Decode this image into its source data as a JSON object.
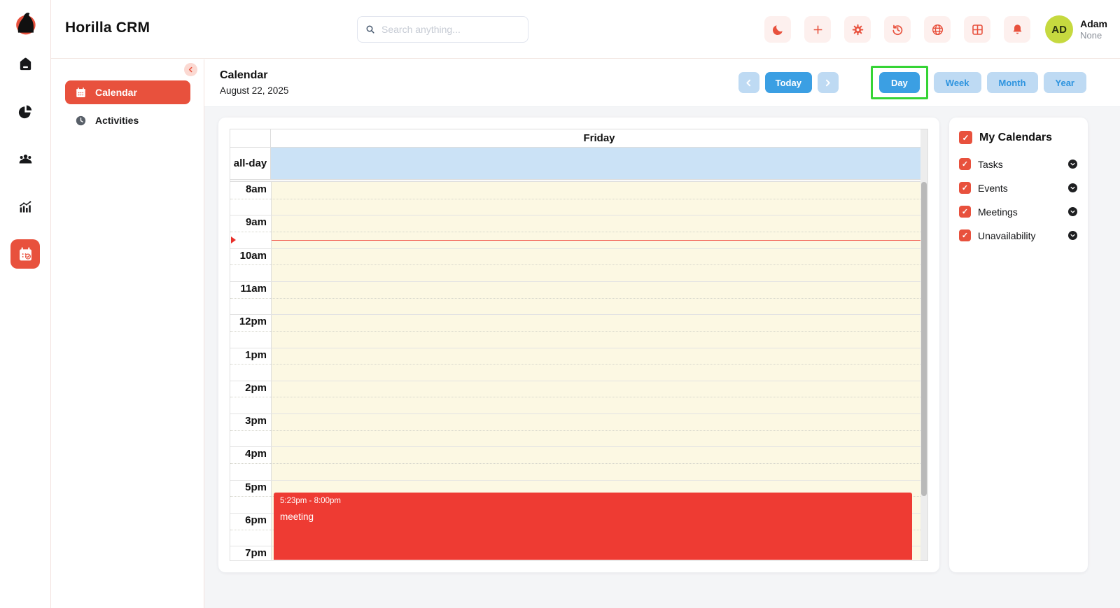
{
  "app": {
    "title": "Horilla CRM"
  },
  "header": {
    "search_placeholder": "Search anything...",
    "actions": [
      {
        "name": "dark-mode",
        "icon": "moon-icon"
      },
      {
        "name": "quick-add",
        "icon": "plus-icon"
      },
      {
        "name": "settings",
        "icon": "gear-icon"
      },
      {
        "name": "history",
        "icon": "history-icon"
      },
      {
        "name": "language",
        "icon": "globe-icon"
      },
      {
        "name": "apps",
        "icon": "grid-icon"
      },
      {
        "name": "notifications",
        "icon": "bell-icon"
      }
    ],
    "user": {
      "initials": "AD",
      "name": "Adam",
      "role": "None"
    }
  },
  "sidebar": {
    "items": [
      {
        "name": "home",
        "icon": "home-icon",
        "active": false
      },
      {
        "name": "reports",
        "icon": "pie-icon",
        "active": false
      },
      {
        "name": "contacts",
        "icon": "people-icon",
        "active": false
      },
      {
        "name": "analytics",
        "icon": "chart-icon",
        "active": false
      },
      {
        "name": "calendar",
        "icon": "calendar-check-icon",
        "active": true
      }
    ]
  },
  "nav_sidebar": {
    "items": [
      {
        "label": "Calendar",
        "active": true
      },
      {
        "label": "Activities",
        "active": false
      }
    ]
  },
  "page": {
    "title": "Calendar",
    "date": "August 22, 2025",
    "nav": {
      "today_label": "Today"
    },
    "views": [
      {
        "label": "Day",
        "active": true,
        "highlighted": true
      },
      {
        "label": "Week",
        "active": false,
        "highlighted": false
      },
      {
        "label": "Month",
        "active": false,
        "highlighted": false
      },
      {
        "label": "Year",
        "active": false,
        "highlighted": false
      }
    ]
  },
  "calendar": {
    "day_header": "Friday",
    "allday_label": "all-day",
    "time_slots": [
      "8am",
      "9am",
      "10am",
      "11am",
      "12pm",
      "1pm",
      "2pm",
      "3pm",
      "4pm",
      "5pm",
      "6pm",
      "7pm"
    ],
    "event": {
      "time": "5:23pm - 8:00pm",
      "title": "meeting"
    }
  },
  "my_calendars": {
    "title": "My Calendars",
    "items": [
      {
        "label": "Tasks",
        "checked": true
      },
      {
        "label": "Events",
        "checked": true
      },
      {
        "label": "Meetings",
        "checked": true
      },
      {
        "label": "Unavailability",
        "checked": true
      }
    ]
  },
  "colors": {
    "accent_red": "#e8513d",
    "event_red": "#ee3b33",
    "primary_blue": "#3b9fe3",
    "light_blue_button": "#bedaf3",
    "allday_blue": "#cbe2f6",
    "slot_yellow": "#fcf8e3",
    "annotation_green": "#35d435",
    "avatar_green": "#c6d93f"
  }
}
